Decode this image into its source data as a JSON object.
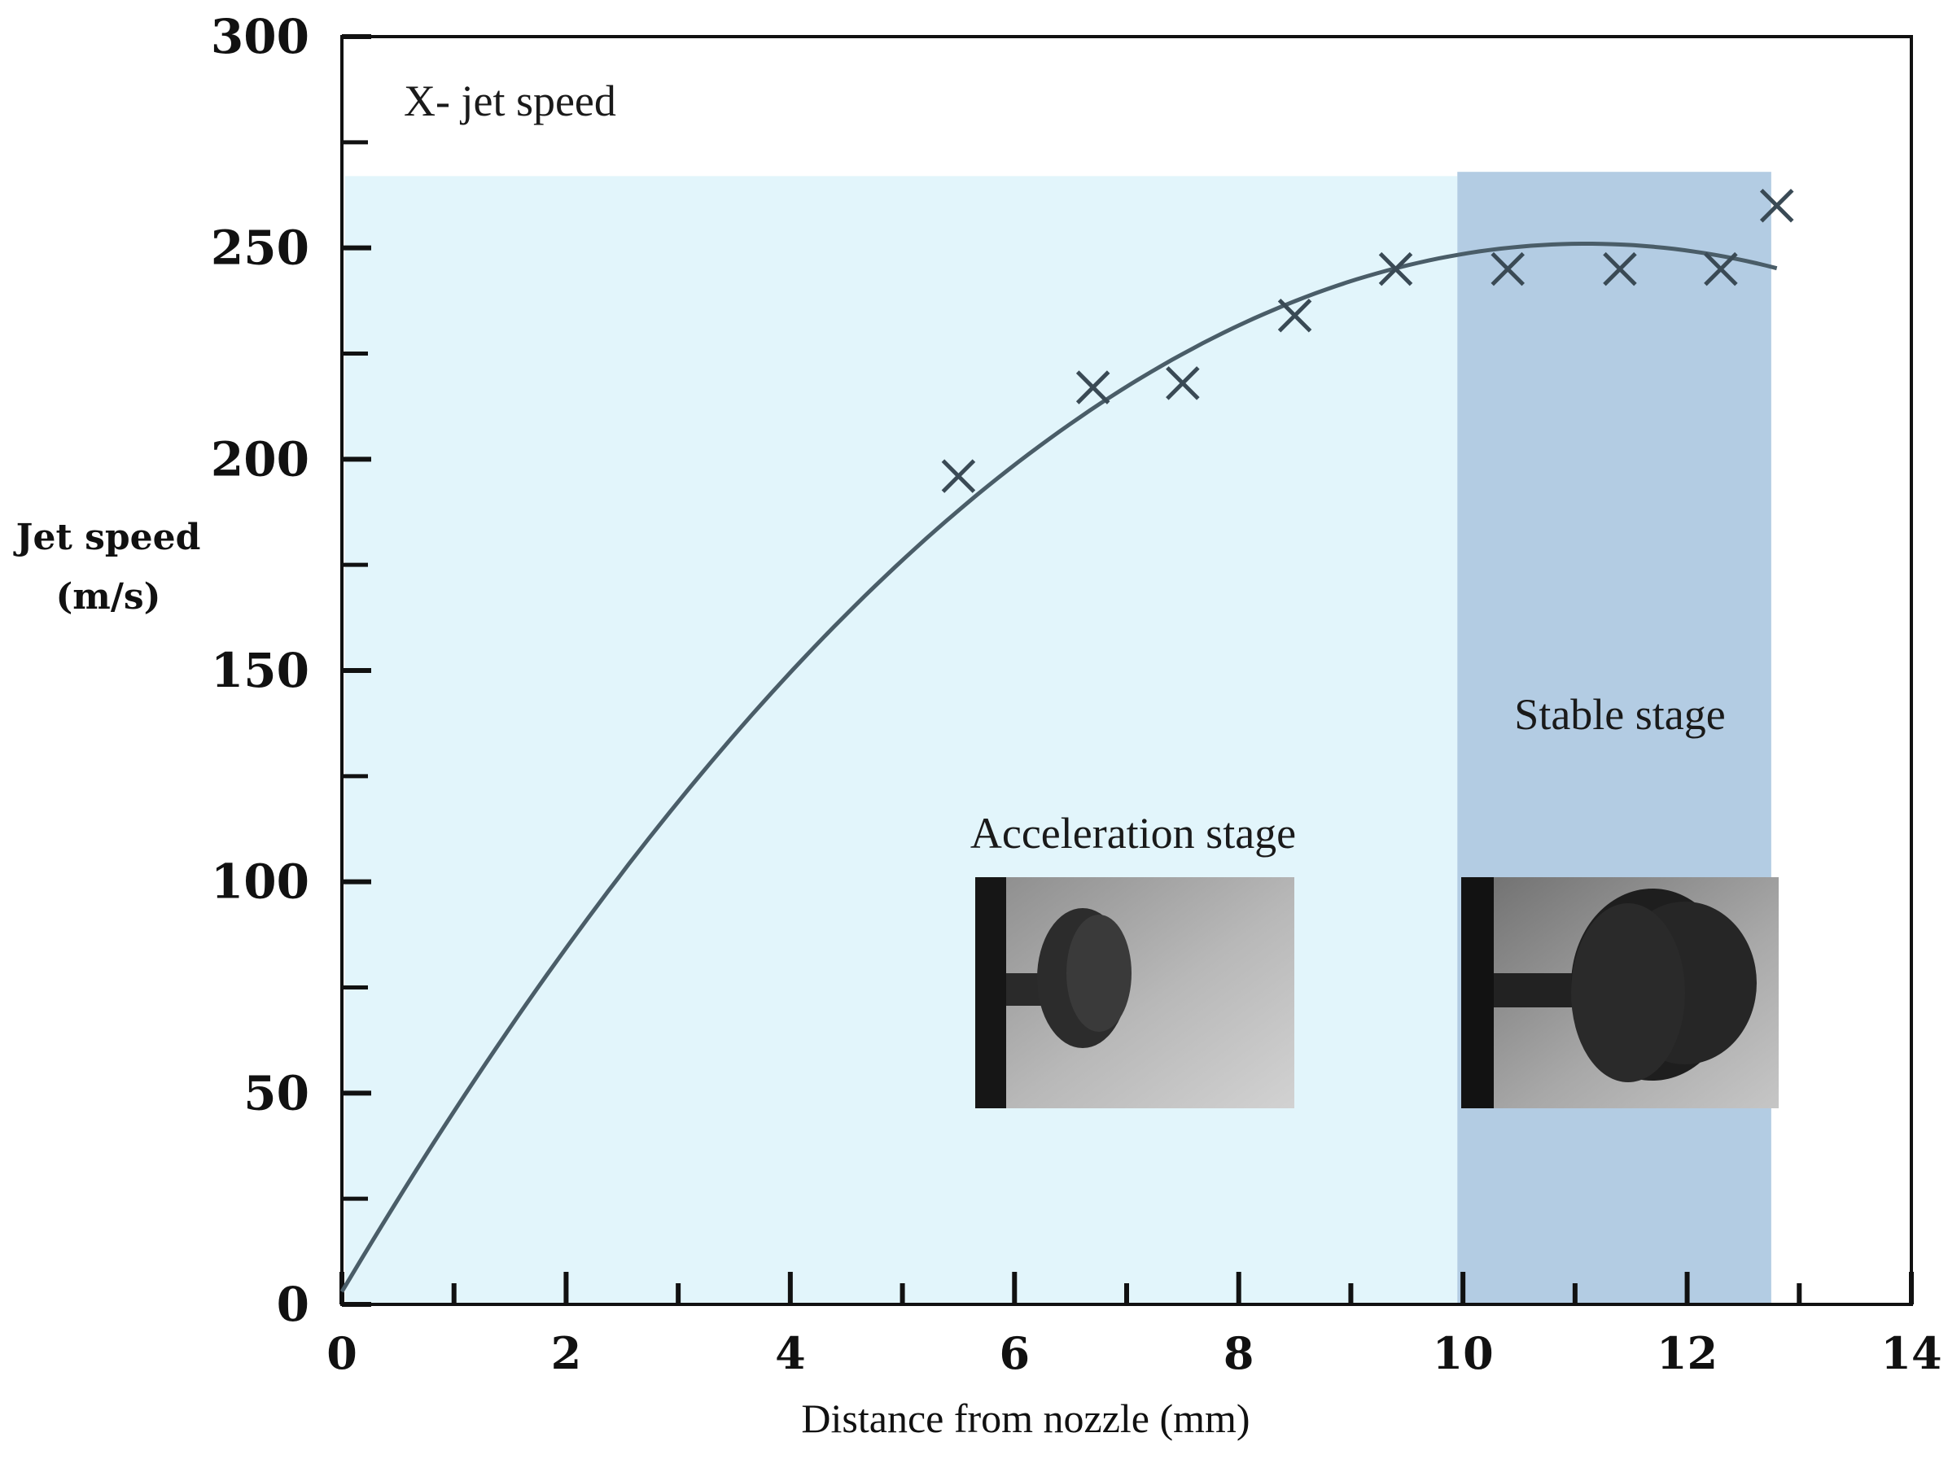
{
  "chart_data": {
    "type": "scatter",
    "xlabel": "Distance from nozzle (mm)",
    "ylabel": [
      "Jet speed",
      "(m/s)"
    ],
    "xlim": [
      0,
      14
    ],
    "ylim": [
      0,
      300
    ],
    "x_ticks": [
      "0",
      "2",
      "4",
      "6",
      "8",
      "10",
      "12",
      "14"
    ],
    "y_ticks": [
      "0",
      "50",
      "100",
      "150",
      "200",
      "250",
      "300"
    ],
    "legend_label": "X- jet speed",
    "legend_placement": "top-left",
    "grid": false,
    "series": [
      {
        "name": "jet speed",
        "marker": "x",
        "points": [
          {
            "x": 5.5,
            "y": 196
          },
          {
            "x": 6.7,
            "y": 217
          },
          {
            "x": 7.5,
            "y": 218
          },
          {
            "x": 8.5,
            "y": 234
          },
          {
            "x": 9.4,
            "y": 245
          },
          {
            "x": 10.4,
            "y": 245
          },
          {
            "x": 11.4,
            "y": 245
          },
          {
            "x": 12.3,
            "y": 245
          },
          {
            "x": 12.8,
            "y": 260
          }
        ]
      }
    ],
    "trend_curve": {
      "type": "quadratic",
      "x_range": [
        0,
        12.8
      ],
      "vertex_x": 11.1,
      "vertex_y": 251,
      "y_at_zero": 3
    },
    "regions": [
      {
        "label": "Acceleration stage",
        "x_from": 0,
        "x_to": 9.95,
        "y_to": 267,
        "color": "#e2f5fb"
      },
      {
        "label": "Stable stage",
        "x_from": 9.95,
        "x_to": 12.75,
        "y_to": 268,
        "color": "#b3cce3"
      }
    ],
    "colors": {
      "curve": "#4a5d68",
      "marker": "#3a4a55",
      "axis": "#111111"
    },
    "icons": [
      "jet-acceleration-photo",
      "jet-stable-photo"
    ]
  }
}
